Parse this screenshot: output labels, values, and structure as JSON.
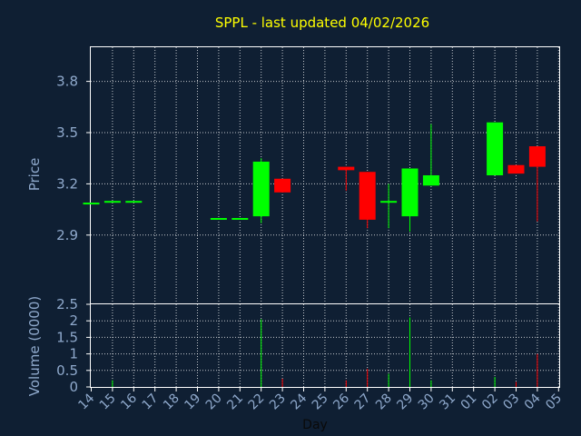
{
  "chart_data": {
    "type": "candlestick",
    "title": "SPPL - last updated 04/02/2026",
    "xlabel": "Day",
    "colors": {
      "background": "#0f1f33",
      "title": "#ffff00",
      "axis_text": "#8fa9cc",
      "frame": "#ffffff",
      "grid": "#ffffff",
      "up": "#00ff00",
      "down": "#ff0000"
    },
    "x_tick_labels": [
      "14",
      "15",
      "16",
      "17",
      "18",
      "19",
      "20",
      "21",
      "22",
      "23",
      "24",
      "25",
      "26",
      "27",
      "28",
      "29",
      "30",
      "31",
      "01",
      "02",
      "03",
      "04",
      "05"
    ],
    "price_panel": {
      "ylabel": "Price",
      "ylim": [
        2.5,
        4.0
      ],
      "yticks": [
        2.9,
        3.2,
        3.5,
        3.8
      ],
      "candles": [
        {
          "day": "14",
          "open": 3.09,
          "high": 3.09,
          "low": 3.09,
          "close": 3.09
        },
        {
          "day": "15",
          "open": 3.1,
          "high": 3.1,
          "low": 3.1,
          "close": 3.1
        },
        {
          "day": "16",
          "open": 3.1,
          "high": 3.1,
          "low": 3.1,
          "close": 3.1
        },
        {
          "day": "20",
          "open": 3.0,
          "high": 3.0,
          "low": 3.0,
          "close": 3.0
        },
        {
          "day": "21",
          "open": 3.0,
          "high": 3.0,
          "low": 3.0,
          "close": 3.0
        },
        {
          "day": "22",
          "open": 3.01,
          "high": 3.35,
          "low": 2.97,
          "close": 3.33
        },
        {
          "day": "23",
          "open": 3.23,
          "high": 3.23,
          "low": 3.15,
          "close": 3.15
        },
        {
          "day": "26",
          "open": 3.3,
          "high": 3.3,
          "low": 3.16,
          "close": 3.28
        },
        {
          "day": "27",
          "open": 3.27,
          "high": 3.27,
          "low": 2.94,
          "close": 2.99
        },
        {
          "day": "28",
          "open": 3.09,
          "high": 3.2,
          "low": 2.94,
          "close": 3.1
        },
        {
          "day": "29",
          "open": 3.01,
          "high": 3.29,
          "low": 2.92,
          "close": 3.29
        },
        {
          "day": "30",
          "open": 3.19,
          "high": 3.55,
          "low": 3.19,
          "close": 3.25
        },
        {
          "day": "02",
          "open": 3.25,
          "high": 3.56,
          "low": 3.25,
          "close": 3.56
        },
        {
          "day": "03",
          "open": 3.31,
          "high": 3.31,
          "low": 3.26,
          "close": 3.26
        },
        {
          "day": "04",
          "open": 3.42,
          "high": 3.42,
          "low": 2.98,
          "close": 3.3
        }
      ]
    },
    "volume_panel": {
      "ylabel": "Volume (0000)",
      "ylim": [
        0,
        2.5
      ],
      "yticks": [
        0,
        0.5,
        1,
        1.5,
        2,
        2.5
      ],
      "bars": [
        {
          "day": "15",
          "value": 0.2,
          "direction": "up"
        },
        {
          "day": "22",
          "value": 2.05,
          "direction": "up"
        },
        {
          "day": "23",
          "value": 0.25,
          "direction": "down"
        },
        {
          "day": "26",
          "value": 0.2,
          "direction": "down"
        },
        {
          "day": "27",
          "value": 0.55,
          "direction": "down"
        },
        {
          "day": "28",
          "value": 0.4,
          "direction": "up"
        },
        {
          "day": "29",
          "value": 2.1,
          "direction": "up"
        },
        {
          "day": "30",
          "value": 0.2,
          "direction": "up"
        },
        {
          "day": "02",
          "value": 0.3,
          "direction": "up"
        },
        {
          "day": "03",
          "value": 0.15,
          "direction": "down"
        },
        {
          "day": "04",
          "value": 1.0,
          "direction": "down"
        }
      ]
    }
  }
}
